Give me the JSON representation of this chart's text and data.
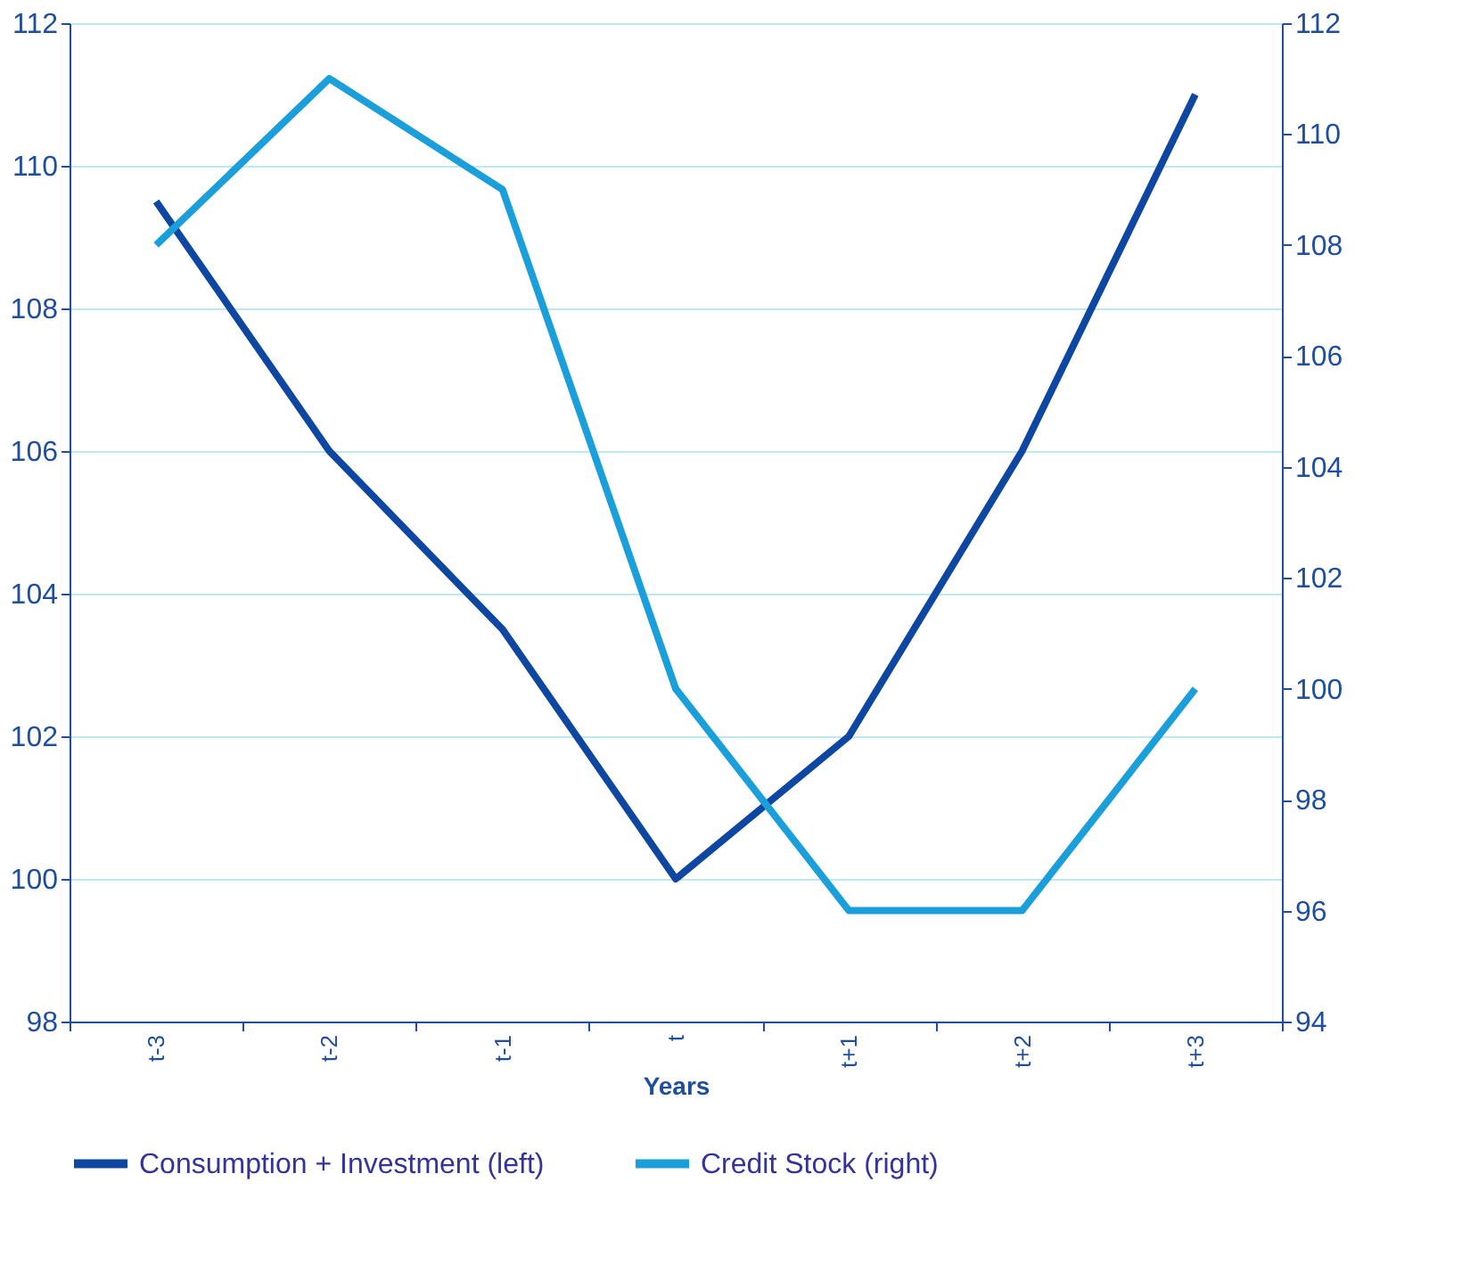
{
  "chart_data": {
    "type": "line",
    "xlabel": "Years",
    "categories": [
      "t-3",
      "t-2",
      "t-1",
      "t",
      "t+1",
      "t+2",
      "t+3"
    ],
    "series": [
      {
        "name": "Consumption + Investment (left)",
        "color": "#0d47a1",
        "values": [
          109.5,
          106,
          103.5,
          100,
          102,
          106,
          111
        ]
      },
      {
        "name": "Credit Stock (right)",
        "color": "#1a9fdb",
        "axis": "y2",
        "values": [
          108,
          111,
          109,
          100,
          96,
          96,
          100
        ]
      }
    ],
    "ylim": [
      98,
      112
    ],
    "yticks": [
      98,
      100,
      102,
      104,
      106,
      108,
      110,
      112
    ],
    "y2lim": [
      94,
      112
    ],
    "y2ticks": [
      94,
      96,
      98,
      100,
      102,
      104,
      106,
      108,
      110,
      112
    ],
    "grid": "y",
    "legend": "bottom",
    "marker": "none",
    "line_style": "solid"
  }
}
